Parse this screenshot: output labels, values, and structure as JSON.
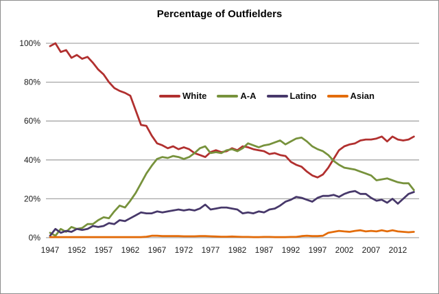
{
  "window": {
    "background": "#ffffff",
    "border_color": "#8c8c8c"
  },
  "colors": {
    "gridline": "#a6a6a6",
    "axis_text": "#1a1a1a",
    "title_text": "#000000",
    "white_series": "#b1302f",
    "aa_series": "#77923c",
    "latino_series": "#47386a",
    "asian_series": "#e36c0a"
  },
  "chart_data": {
    "type": "line",
    "title": "Percentage of Outfielders",
    "xlabel": "",
    "ylabel": "",
    "xlim": [
      1947,
      2016
    ],
    "ylim": [
      0,
      100
    ],
    "grid": "horizontal",
    "legend_position": "upper-center-inside",
    "y_ticks": [
      0,
      20,
      40,
      60,
      80,
      100
    ],
    "y_tick_labels": [
      "0%",
      "20%",
      "40%",
      "60%",
      "80%",
      "100%"
    ],
    "x_ticks": [
      1947,
      1952,
      1957,
      1962,
      1967,
      1972,
      1977,
      1982,
      1987,
      1992,
      1997,
      2002,
      2007,
      2012
    ],
    "x_tick_labels": [
      "1947",
      "1952",
      "1957",
      "1962",
      "1967",
      "1972",
      "1977",
      "1982",
      "1987",
      "1992",
      "1997",
      "2002",
      "2007",
      "2012"
    ],
    "x": [
      1947,
      1948,
      1949,
      1950,
      1951,
      1952,
      1953,
      1954,
      1955,
      1956,
      1957,
      1958,
      1959,
      1960,
      1961,
      1962,
      1963,
      1964,
      1965,
      1966,
      1967,
      1968,
      1969,
      1970,
      1971,
      1972,
      1973,
      1974,
      1975,
      1976,
      1977,
      1978,
      1979,
      1980,
      1981,
      1982,
      1983,
      1984,
      1985,
      1986,
      1987,
      1988,
      1989,
      1990,
      1991,
      1992,
      1993,
      1994,
      1995,
      1996,
      1997,
      1998,
      1999,
      2000,
      2001,
      2002,
      2003,
      2004,
      2005,
      2006,
      2007,
      2008,
      2009,
      2010,
      2011,
      2012,
      2013,
      2014,
      2015
    ],
    "series": [
      {
        "name": "White",
        "color": "#b1302f",
        "values": [
          98.5,
          100,
          95.5,
          96.5,
          92.5,
          94,
          92,
          93,
          90,
          86.5,
          84,
          80,
          77,
          75.5,
          74.5,
          73,
          65.5,
          58,
          57.5,
          52.5,
          48.5,
          47.5,
          46,
          47,
          45.5,
          46.5,
          45.5,
          43.5,
          42.5,
          41.5,
          44,
          45,
          44,
          44.5,
          46,
          45,
          47,
          46.5,
          45.5,
          45,
          44.5,
          43,
          43.5,
          42.5,
          42,
          39,
          37.5,
          36.5,
          34,
          32,
          31,
          32.5,
          36,
          40.5,
          45,
          47,
          48,
          48.5,
          50,
          50.5,
          50.5,
          51,
          52,
          49.5,
          52,
          50.5,
          50,
          50.5,
          52
        ]
      },
      {
        "name": "A-A",
        "color": "#77923c",
        "values": [
          2.5,
          1,
          4.5,
          3,
          5.5,
          4.5,
          5,
          7,
          7,
          9,
          10.5,
          10,
          13.5,
          16.5,
          15.5,
          19,
          23,
          28,
          33,
          37,
          40.5,
          41.5,
          41,
          42,
          41.5,
          40.5,
          41.5,
          43.5,
          46,
          47,
          43.5,
          44,
          43.5,
          45,
          45.5,
          44.5,
          46,
          48.5,
          47.5,
          46.5,
          47.5,
          48,
          49,
          50,
          48,
          49.5,
          51,
          51.5,
          49.5,
          47,
          45.5,
          44.5,
          42.5,
          39.5,
          37.5,
          36,
          35.5,
          35,
          34,
          33,
          32,
          29.5,
          30,
          30.5,
          29.5,
          28.5,
          28,
          28,
          24.5
        ]
      },
      {
        "name": "Latino",
        "color": "#47386a",
        "values": [
          1,
          4.5,
          2.5,
          3.5,
          3,
          4.5,
          4,
          4.5,
          6,
          5.5,
          6,
          7.5,
          7,
          9,
          8.5,
          10,
          11.5,
          13,
          12.5,
          12.5,
          13.5,
          13,
          13.5,
          14,
          14.5,
          14,
          14.5,
          14,
          15,
          17,
          14.5,
          15,
          15.5,
          15.5,
          15,
          14.5,
          12.5,
          13,
          12.5,
          13.5,
          13,
          14.5,
          15,
          16.5,
          18.5,
          19.5,
          21,
          20.5,
          19.5,
          18.5,
          20.5,
          21.5,
          21.5,
          22,
          21,
          22.5,
          23.5,
          24,
          22.5,
          22.5,
          20.5,
          19,
          19.5,
          18,
          20,
          17.5,
          20,
          22.5,
          23.5
        ]
      },
      {
        "name": "Asian",
        "color": "#e36c0a",
        "values": [
          0.3,
          0.3,
          0.3,
          0.3,
          0.3,
          0.3,
          0.3,
          0.3,
          0.3,
          0.3,
          0.3,
          0.3,
          0.3,
          0.3,
          0.3,
          0.3,
          0.3,
          0.3,
          0.5,
          1,
          1,
          0.8,
          0.8,
          0.8,
          0.8,
          0.7,
          0.7,
          0.7,
          0.8,
          0.8,
          0.7,
          0.6,
          0.5,
          0.5,
          0.6,
          0.5,
          0.4,
          0.4,
          0.3,
          0.3,
          0.4,
          0.4,
          0.3,
          0.3,
          0.3,
          0.4,
          0.4,
          0.8,
          1,
          0.8,
          0.8,
          1,
          2.5,
          3,
          3.5,
          3.2,
          3,
          3.5,
          3.8,
          3.2,
          3.5,
          3.2,
          3.8,
          3.2,
          3.8,
          3.2,
          3,
          2.8,
          3
        ]
      }
    ]
  }
}
